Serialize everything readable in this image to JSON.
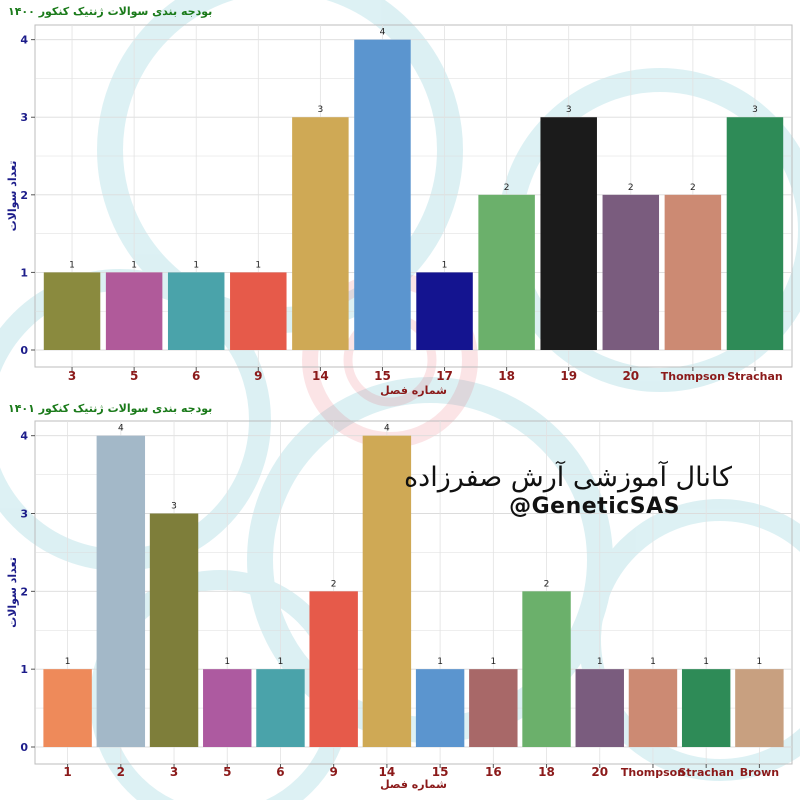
{
  "chart_data": [
    {
      "type": "bar",
      "title": "بودجه بندی سوالات ژنتیک کنکور ۱۴۰۰",
      "xlabel": "شماره فصل",
      "ylabel": "تعداد سوالات",
      "categories": [
        "3",
        "5",
        "6",
        "9",
        "14",
        "15",
        "17",
        "18",
        "19",
        "20",
        "Thompson",
        "Strachan"
      ],
      "values": [
        1,
        1,
        1,
        1,
        3,
        4,
        1,
        2,
        3,
        2,
        2,
        3
      ],
      "colors": [
        "#8a8a3e",
        "#b05a9a",
        "#4aa3aa",
        "#e65a4a",
        "#cfa955",
        "#5b95cf",
        "#141490",
        "#6bb06b",
        "#1b1b1b",
        "#7a5c7e",
        "#cc8a73",
        "#2e8b57"
      ],
      "yticks": [
        0,
        1,
        2,
        3,
        4
      ],
      "ylim": [
        0,
        4.15
      ],
      "grid": true,
      "legend": "none"
    },
    {
      "type": "bar",
      "title": "بودجه بندی سوالات ژنتیک کنکور ۱۴۰۱",
      "xlabel": "شماره فصل",
      "ylabel": "تعداد سوالات",
      "categories": [
        "1",
        "2",
        "3",
        "5",
        "6",
        "9",
        "14",
        "15",
        "16",
        "18",
        "20",
        "Thompson",
        "Strachan",
        "Brown"
      ],
      "values": [
        1,
        4,
        3,
        1,
        1,
        2,
        4,
        1,
        1,
        2,
        1,
        1,
        1,
        1
      ],
      "colors": [
        "#ee8a5a",
        "#a3b8c8",
        "#7e7e3a",
        "#ad5aa0",
        "#4aa3aa",
        "#e65a4a",
        "#cfa955",
        "#5b95cf",
        "#a86868",
        "#6bb06b",
        "#7a5c7e",
        "#cc8a73",
        "#2e8b57",
        "#c8a080"
      ],
      "yticks": [
        0,
        1,
        2,
        3,
        4
      ],
      "ylim": [
        0,
        4.15
      ],
      "grid": true,
      "legend": "none"
    }
  ],
  "watermark": {
    "name": "کانال آموزشی آرش صفرزاده",
    "handle": "@GeneticSAS"
  }
}
